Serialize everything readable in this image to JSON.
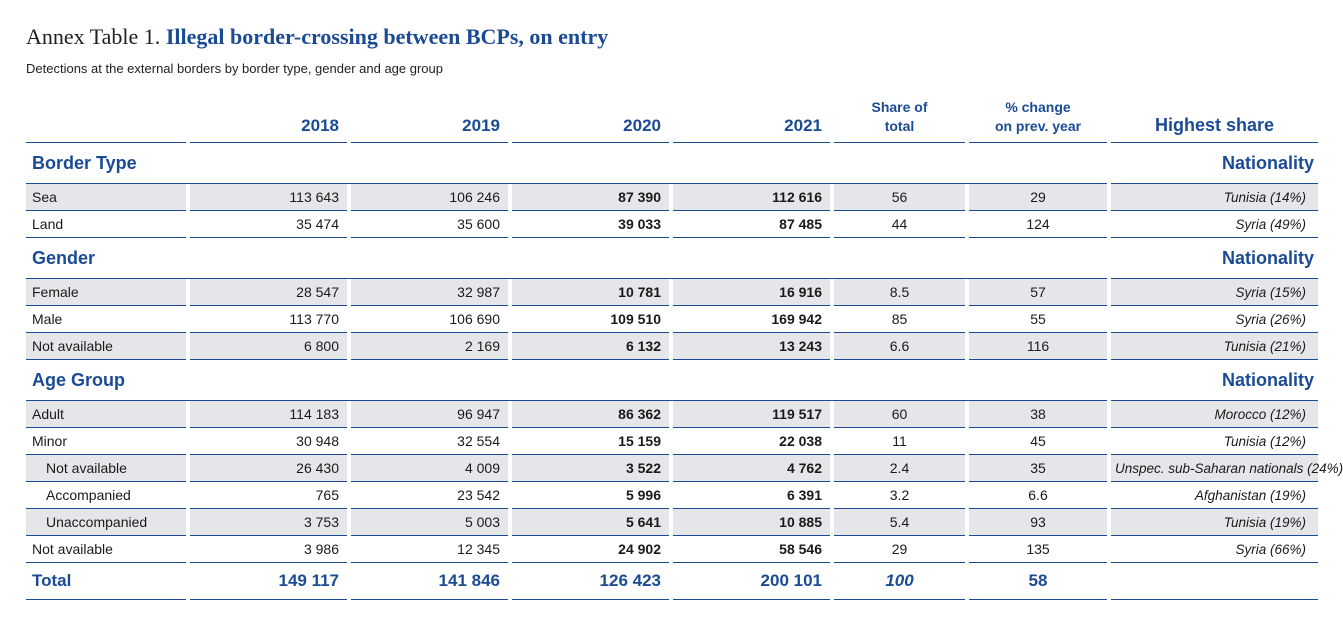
{
  "title": {
    "prefix": "Annex Table 1.",
    "main": "Illegal border-crossing between BCPs, on entry"
  },
  "subtitle": "Detections at the external borders by border type, gender and age group",
  "columns": {
    "y2018": "2018",
    "y2019": "2019",
    "y2020": "2020",
    "y2021": "2021",
    "share_line1": "Share of",
    "share_line2": "total",
    "change_line1": "% change",
    "change_line2": "on prev. year",
    "highest": "Highest share"
  },
  "sections": {
    "border": {
      "heading": "Border Type",
      "nat": "Nationality",
      "rows": [
        {
          "label": "Sea",
          "y2018": "113 643",
          "y2019": "106 246",
          "y2020": "87 390",
          "y2021": "112 616",
          "share": "56",
          "change": "29",
          "highest": "Tunisia (14%)"
        },
        {
          "label": "Land",
          "y2018": "35 474",
          "y2019": "35 600",
          "y2020": "39 033",
          "y2021": "87 485",
          "share": "44",
          "change": "124",
          "highest": "Syria (49%)"
        }
      ]
    },
    "gender": {
      "heading": "Gender",
      "nat": "Nationality",
      "rows": [
        {
          "label": "Female",
          "y2018": "28 547",
          "y2019": "32 987",
          "y2020": "10 781",
          "y2021": "16 916",
          "share": "8.5",
          "change": "57",
          "highest": "Syria (15%)"
        },
        {
          "label": "Male",
          "y2018": "113 770",
          "y2019": "106 690",
          "y2020": "109 510",
          "y2021": "169 942",
          "share": "85",
          "change": "55",
          "highest": "Syria (26%)"
        },
        {
          "label": "Not available",
          "y2018": "6 800",
          "y2019": "2 169",
          "y2020": "6 132",
          "y2021": "13 243",
          "share": "6.6",
          "change": "116",
          "highest": "Tunisia (21%)"
        }
      ]
    },
    "age": {
      "heading": "Age Group",
      "nat": "Nationality",
      "rows": [
        {
          "label": "Adult",
          "y2018": "114 183",
          "y2019": "96 947",
          "y2020": "86 362",
          "y2021": "119 517",
          "share": "60",
          "change": "38",
          "highest": "Morocco (12%)"
        },
        {
          "label": "Minor",
          "y2018": "30 948",
          "y2019": "32 554",
          "y2020": "15 159",
          "y2021": "22 038",
          "share": "11",
          "change": "45",
          "highest": "Tunisia (12%)"
        },
        {
          "label": "Not available",
          "y2018": "26 430",
          "y2019": "4 009",
          "y2020": "3 522",
          "y2021": "4 762",
          "share": "2.4",
          "change": "35",
          "highest": "Unspec. sub-Saharan nationals (24%)"
        },
        {
          "label": "Accompanied",
          "y2018": "765",
          "y2019": "23 542",
          "y2020": "5 996",
          "y2021": "6 391",
          "share": "3.2",
          "change": "6.6",
          "highest": "Afghanistan (19%)"
        },
        {
          "label": "Unaccompanied",
          "y2018": "3 753",
          "y2019": "5 003",
          "y2020": "5 641",
          "y2021": "10 885",
          "share": "5.4",
          "change": "93",
          "highest": "Tunisia (19%)"
        },
        {
          "label": "Not available",
          "y2018": "3 986",
          "y2019": "12 345",
          "y2020": "24 902",
          "y2021": "58 546",
          "share": "29",
          "change": "135",
          "highest": "Syria (66%)"
        }
      ]
    }
  },
  "total": {
    "label": "Total",
    "y2018": "149 117",
    "y2019": "141 846",
    "y2020": "126 423",
    "y2021": "200 101",
    "share": "100",
    "change": "58"
  }
}
